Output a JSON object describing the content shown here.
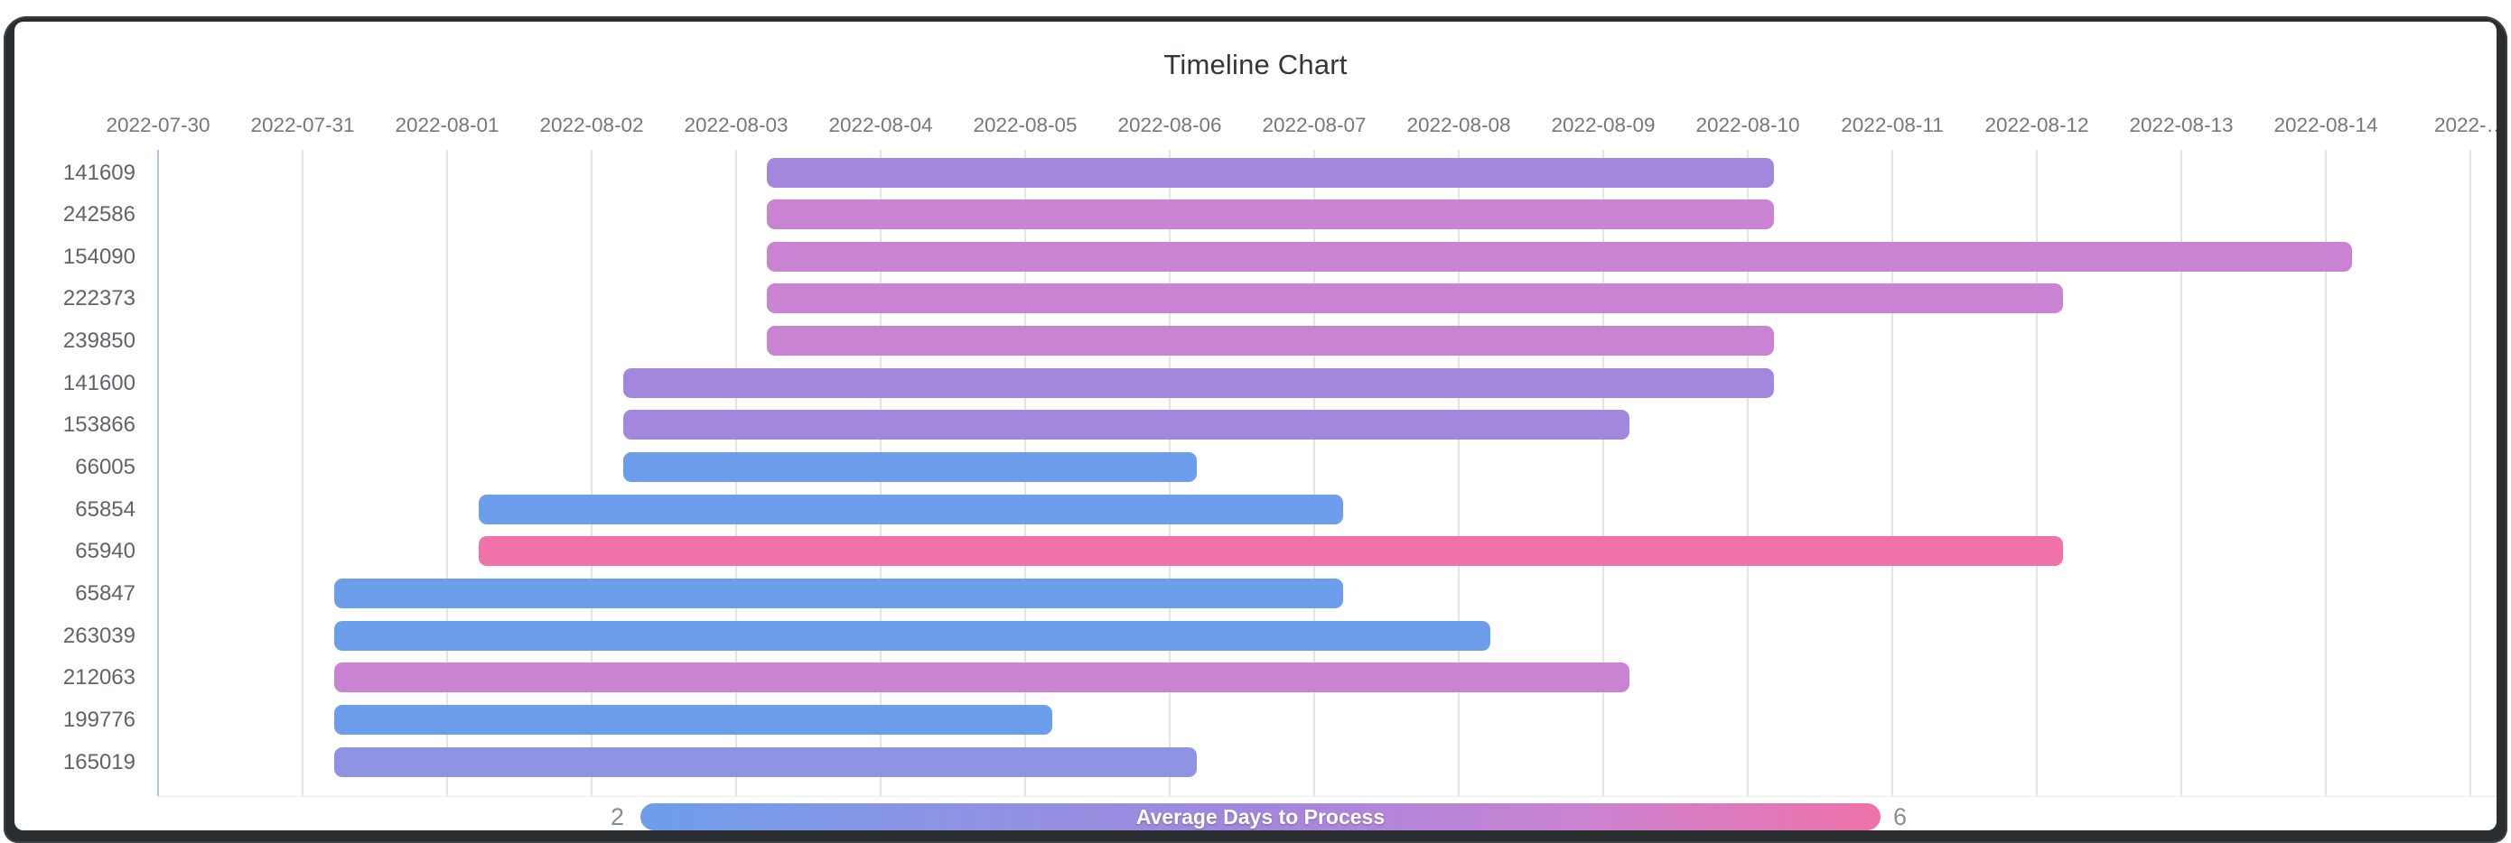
{
  "title": "Timeline Chart",
  "axis": {
    "tick_labels": [
      "2022-07-30",
      "2022-07-31",
      "2022-08-01",
      "2022-08-02",
      "2022-08-03",
      "2022-08-04",
      "2022-08-05",
      "2022-08-06",
      "2022-08-07",
      "2022-08-08",
      "2022-08-09",
      "2022-08-10",
      "2022-08-11",
      "2022-08-12",
      "2022-08-13",
      "2022-08-14",
      "2022-…"
    ],
    "label_color": "#75787b",
    "gridline_color": "#e4e4e7",
    "first_gridline_color": "#b5c2e0"
  },
  "legend": {
    "min_label": "2",
    "max_label": "6",
    "title": "Average Days to Process",
    "gradient": [
      "#6D9EEB",
      "#8E93E4",
      "#A287DC",
      "#C983D2",
      "#EF72A9"
    ],
    "label_color": "#8a8d90"
  },
  "chart_data": {
    "type": "timeline",
    "title": "Timeline Chart",
    "x_axis": {
      "start_date": "2022-07-30",
      "tick_interval_days": 1,
      "visible_end_label": "2022-08-14"
    },
    "colorbar": {
      "label": "Average Days to Process",
      "min": 2,
      "max": 6,
      "min_color": "#6D9EEB",
      "max_color": "#EF72A9"
    },
    "tasks": [
      {
        "id": "141609",
        "start_date": "2022-08-03",
        "end_date": "2022-08-10",
        "start_day": 4.21,
        "end_day": 11.18,
        "duration_days": 7,
        "avg_days_to_process": 4,
        "color": "#A287DC"
      },
      {
        "id": "242586",
        "start_date": "2022-08-03",
        "end_date": "2022-08-10",
        "start_day": 4.21,
        "end_day": 11.18,
        "duration_days": 7,
        "avg_days_to_process": 5,
        "color": "#C983D2"
      },
      {
        "id": "154090",
        "start_date": "2022-08-03",
        "end_date": "2022-08-14",
        "start_day": 4.21,
        "end_day": 15.18,
        "duration_days": 11,
        "avg_days_to_process": 5,
        "color": "#C983D2"
      },
      {
        "id": "222373",
        "start_date": "2022-08-03",
        "end_date": "2022-08-12",
        "start_day": 4.21,
        "end_day": 13.18,
        "duration_days": 9,
        "avg_days_to_process": 5,
        "color": "#C983D2"
      },
      {
        "id": "239850",
        "start_date": "2022-08-03",
        "end_date": "2022-08-10",
        "start_day": 4.21,
        "end_day": 11.18,
        "duration_days": 7,
        "avg_days_to_process": 5,
        "color": "#C983D2"
      },
      {
        "id": "141600",
        "start_date": "2022-08-02",
        "end_date": "2022-08-10",
        "start_day": 3.22,
        "end_day": 11.18,
        "duration_days": 8,
        "avg_days_to_process": 4,
        "color": "#A287DC"
      },
      {
        "id": "153866",
        "start_date": "2022-08-02",
        "end_date": "2022-08-09",
        "start_day": 3.22,
        "end_day": 10.18,
        "duration_days": 7,
        "avg_days_to_process": 4,
        "color": "#A287DC"
      },
      {
        "id": "66005",
        "start_date": "2022-08-02",
        "end_date": "2022-08-06",
        "start_day": 3.22,
        "end_day": 7.19,
        "duration_days": 4,
        "avg_days_to_process": 2,
        "color": "#6D9EEB"
      },
      {
        "id": "65854",
        "start_date": "2022-08-01",
        "end_date": "2022-08-07",
        "start_day": 2.22,
        "end_day": 8.2,
        "duration_days": 6,
        "avg_days_to_process": 2,
        "color": "#6D9EEB"
      },
      {
        "id": "65940",
        "start_date": "2022-08-01",
        "end_date": "2022-08-12",
        "start_day": 2.22,
        "end_day": 13.18,
        "duration_days": 11,
        "avg_days_to_process": 6,
        "color": "#EF72A9"
      },
      {
        "id": "65847",
        "start_date": "2022-07-31",
        "end_date": "2022-08-07",
        "start_day": 1.22,
        "end_day": 8.2,
        "duration_days": 7,
        "avg_days_to_process": 2,
        "color": "#6D9EEB"
      },
      {
        "id": "263039",
        "start_date": "2022-07-31",
        "end_date": "2022-08-08",
        "start_day": 1.22,
        "end_day": 9.22,
        "duration_days": 8,
        "avg_days_to_process": 2,
        "color": "#6D9EEB"
      },
      {
        "id": "212063",
        "start_date": "2022-07-31",
        "end_date": "2022-08-09",
        "start_day": 1.22,
        "end_day": 10.18,
        "duration_days": 9,
        "avg_days_to_process": 5,
        "color": "#C983D2"
      },
      {
        "id": "199776",
        "start_date": "2022-07-31",
        "end_date": "2022-08-05",
        "start_day": 1.22,
        "end_day": 6.19,
        "duration_days": 5,
        "avg_days_to_process": 2,
        "color": "#6D9EEB"
      },
      {
        "id": "165019",
        "start_date": "2022-07-31",
        "end_date": "2022-08-06",
        "start_day": 1.22,
        "end_day": 7.19,
        "duration_days": 6,
        "avg_days_to_process": 3,
        "color": "#8E93E4"
      }
    ]
  }
}
